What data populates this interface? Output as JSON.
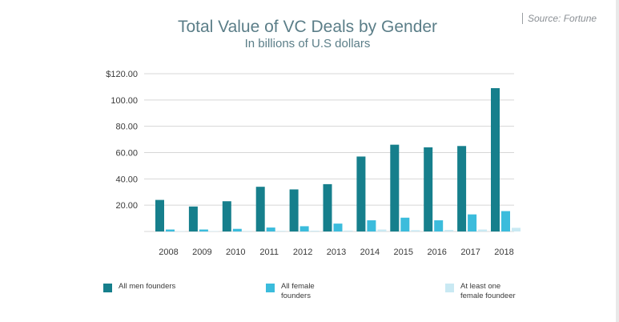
{
  "source": {
    "label": "Source:",
    "name": "Fortune"
  },
  "chart_data": {
    "type": "bar",
    "title": "Total Value of VC Deals by Gender",
    "subtitle": "In billions of U.S dollars",
    "xlabel": "",
    "ylabel": "",
    "categories": [
      "2008",
      "2009",
      "2010",
      "2011",
      "2012",
      "2013",
      "2014",
      "2015",
      "2016",
      "2017",
      "2018"
    ],
    "ylim": [
      0,
      120
    ],
    "yticks": [
      {
        "value": 20,
        "label": "20.00"
      },
      {
        "value": 40,
        "label": "40.00"
      },
      {
        "value": 60,
        "label": "60.00"
      },
      {
        "value": 80,
        "label": "80.00"
      },
      {
        "value": 100,
        "label": "100.00"
      },
      {
        "value": 120,
        "label": "$120.00"
      }
    ],
    "grid": true,
    "legend_position": "bottom",
    "series": [
      {
        "name": "All men founders",
        "color": "#167f8c",
        "values": [
          24,
          19,
          23,
          34,
          32,
          36,
          57,
          66,
          64,
          65,
          109
        ]
      },
      {
        "name": "All female founders",
        "color": "#3bbcdc",
        "values": [
          1.5,
          1.5,
          2,
          3,
          4,
          6,
          8.5,
          10.5,
          8.5,
          13,
          15.5
        ]
      },
      {
        "name": "At least one\nfemale foundeer",
        "color": "#c9e9f3",
        "values": [
          0.3,
          0.3,
          0.4,
          0.5,
          0.6,
          0.7,
          1.5,
          1.0,
          1.2,
          1.5,
          2.8
        ]
      }
    ]
  }
}
